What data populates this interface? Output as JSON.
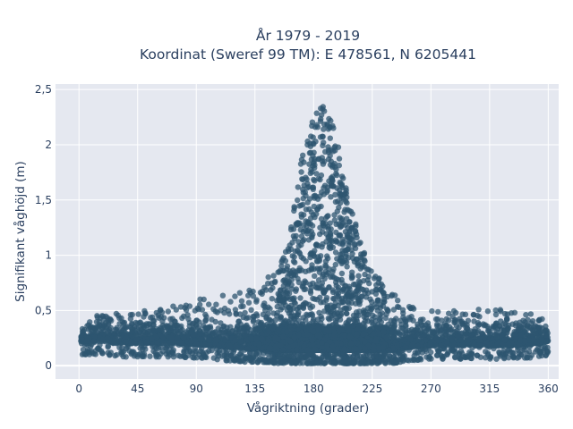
{
  "chart_data": {
    "type": "scatter",
    "title": "År 1979 - 2019",
    "subtitle": "Koordinat (Sweref 99 TM): E 478561, N 6205441",
    "xlabel": "Vågriktning (grader)",
    "ylabel": "Signifikant våghöjd (m)",
    "xlim": [
      -18,
      368
    ],
    "ylim": [
      -0.12,
      2.55
    ],
    "xticks": [
      0,
      45,
      90,
      135,
      180,
      225,
      270,
      315,
      360
    ],
    "xtick_labels": [
      "0",
      "45",
      "90",
      "135",
      "180",
      "225",
      "270",
      "315",
      "360"
    ],
    "yticks": [
      0,
      0.5,
      1,
      1.5,
      2,
      2.5
    ],
    "ytick_labels": [
      "0",
      "0,5",
      "1",
      "1,5",
      "2",
      "2,5"
    ],
    "grid": true,
    "legend": "none",
    "marker_color": "#2e5670",
    "plot_background": "#e5e8f0",
    "x": [
      0,
      10,
      20,
      30,
      45,
      60,
      75,
      90,
      100,
      110,
      120,
      130,
      140,
      145,
      150,
      155,
      160,
      163,
      166,
      169,
      172,
      175,
      178,
      181,
      184,
      187,
      190,
      193,
      196,
      199,
      202,
      205,
      208,
      212,
      216,
      220,
      225,
      230,
      235,
      240,
      245,
      250,
      260,
      270,
      280,
      290,
      300,
      315,
      330,
      345,
      355,
      360
    ],
    "y_max": [
      0.3,
      0.45,
      0.5,
      0.48,
      0.5,
      0.52,
      0.55,
      0.6,
      0.62,
      0.65,
      0.66,
      0.7,
      0.75,
      0.8,
      0.88,
      0.95,
      1.1,
      1.3,
      1.55,
      1.75,
      1.95,
      2.1,
      2.25,
      2.35,
      2.45,
      2.45,
      2.35,
      2.25,
      2.15,
      2.0,
      1.8,
      1.6,
      1.45,
      1.3,
      1.15,
      1.0,
      0.95,
      0.8,
      0.72,
      0.68,
      0.6,
      0.55,
      0.55,
      0.5,
      0.48,
      0.5,
      0.5,
      0.52,
      0.5,
      0.48,
      0.45,
      0.32
    ],
    "y_min": [
      0.1,
      0.1,
      0.1,
      0.08,
      0.08,
      0.08,
      0.08,
      0.07,
      0.06,
      0.05,
      0.04,
      0.03,
      0.03,
      0.03,
      0.02,
      0.02,
      0.02,
      0.02,
      0.02,
      0.02,
      0.02,
      0.02,
      0.02,
      0.02,
      0.02,
      0.02,
      0.02,
      0.02,
      0.02,
      0.02,
      0.02,
      0.02,
      0.02,
      0.02,
      0.02,
      0.02,
      0.02,
      0.02,
      0.02,
      0.02,
      0.03,
      0.04,
      0.05,
      0.06,
      0.06,
      0.06,
      0.06,
      0.06,
      0.06,
      0.07,
      0.08,
      0.1
    ]
  }
}
